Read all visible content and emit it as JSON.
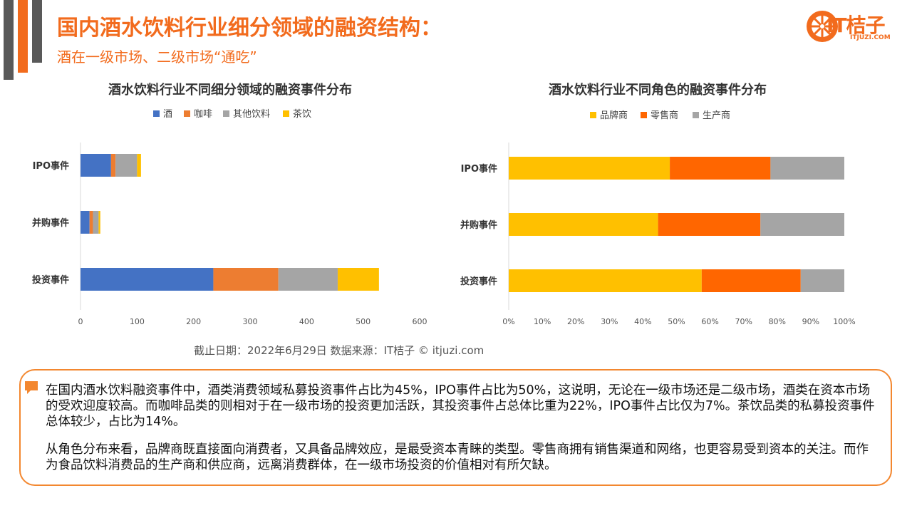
{
  "header": {
    "title": "国内酒水饮料行业细分领域的融资结构：",
    "subtitle": "酒在一级市场、二级市场“通吃”",
    "logo_text": "IT桔子",
    "logo_sub": "ITJUZI.COM"
  },
  "colors": {
    "accent": "#F26B1D",
    "deco_gray": "#595959",
    "wine": "#4472C4",
    "coffee": "#ED7D31",
    "other_drinks": "#A5A5A5",
    "tea": "#FFC000",
    "brand": "#FFC000",
    "retailer": "#FF6600",
    "producer": "#A5A5A5"
  },
  "chart_data": [
    {
      "type": "bar",
      "orientation": "horizontal",
      "stacked": true,
      "title": "酒水饮料行业不同细分领域的融资事件分布",
      "categories": [
        "IPO事件",
        "并购事件",
        "投资事件"
      ],
      "series": [
        {
          "name": "酒",
          "values": [
            54,
            16,
            235
          ]
        },
        {
          "name": "咖啡",
          "values": [
            8,
            6,
            115
          ]
        },
        {
          "name": "其他饮料",
          "values": [
            38,
            10,
            105
          ]
        },
        {
          "name": "茶饮",
          "values": [
            7,
            3,
            73
          ]
        }
      ],
      "xlim": [
        0,
        600
      ],
      "xticks": [
        "0",
        "100",
        "200",
        "300",
        "400",
        "500",
        "600"
      ],
      "legend": "top",
      "grid": false
    },
    {
      "type": "bar",
      "orientation": "horizontal",
      "stacked": true,
      "percent": true,
      "title": "酒水饮料行业不同角色的融资事件分布",
      "categories": [
        "IPO事件",
        "并购事件",
        "投资事件"
      ],
      "series": [
        {
          "name": "品牌商",
          "values": [
            48,
            44.5,
            57.5
          ]
        },
        {
          "name": "零售商",
          "values": [
            30,
            30.5,
            29.5
          ]
        },
        {
          "name": "生产商",
          "values": [
            22,
            25,
            13
          ]
        }
      ],
      "xlim": [
        0,
        100
      ],
      "xticks": [
        "0%",
        "10%",
        "20%",
        "30%",
        "40%",
        "50%",
        "60%",
        "70%",
        "80%",
        "90%",
        "100%"
      ],
      "legend": "top",
      "grid": false
    }
  ],
  "source": "截止日期：2022年6月29日     数据来源：IT桔子 © itjuzi.com",
  "notes": {
    "p1": "在国内酒水饮料融资事件中，酒类消费领域私募投资事件占比为45%，IPO事件占比为50%，这说明，无论在一级市场还是二级市场，酒类在资本市场的受欢迎度较高。而咖啡品类的则相对于在一级市场的投资更加活跃，其投资事件占总体比重为22%，IPO事件占比仅为7%。茶饮品类的私募投资事件总体较少，占比为14%。",
    "p2": "从角色分布来看，品牌商既直接面向消费者，又具备品牌效应，是最受资本青睐的类型。零售商拥有销售渠道和网络，也更容易受到资本的关注。而作为食品饮料消费品的生产商和供应商，远离消费群体，在一级市场投资的价值相对有所欠缺。"
  }
}
